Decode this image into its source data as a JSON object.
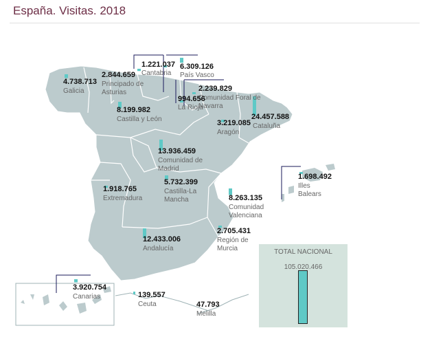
{
  "title": "España. Visitas. 2018",
  "colors": {
    "land": "#bccbcd",
    "border": "#ffffff",
    "bar": "#5fc9c6",
    "total_box": "#d4e3dd",
    "title": "#6d2e46"
  },
  "regions": [
    {
      "id": "galicia",
      "value": "4.738.713",
      "name": [
        "Galicia"
      ]
    },
    {
      "id": "asturias",
      "value": "2.844.659",
      "name": [
        "Principado de",
        "Asturias"
      ]
    },
    {
      "id": "cantabria",
      "value": "1.221.037",
      "name": [
        "Cantabria"
      ]
    },
    {
      "id": "pais-vasco",
      "value": "6.309.126",
      "name": [
        "País Vasco"
      ]
    },
    {
      "id": "navarra",
      "value": "2.239.829",
      "name": [
        "Comunidad Foral de",
        "Navarra"
      ]
    },
    {
      "id": "la-rioja",
      "value": "994.656",
      "name": [
        "La Rioja"
      ]
    },
    {
      "id": "cataluna",
      "value": "24.457.588",
      "name": [
        "Cataluña"
      ]
    },
    {
      "id": "aragon",
      "value": "3.219.085",
      "name": [
        "Aragón"
      ]
    },
    {
      "id": "castilla-leon",
      "value": "8.199.982",
      "name": [
        "Castilla y León"
      ]
    },
    {
      "id": "madrid",
      "value": "13.936.459",
      "name": [
        "Comunidad de",
        "Madrid"
      ]
    },
    {
      "id": "extremadura",
      "value": "1.918.765",
      "name": [
        "Extremadura"
      ]
    },
    {
      "id": "castilla-la-mancha",
      "value": "5.732.399",
      "name": [
        "Castilla-La",
        "Mancha"
      ]
    },
    {
      "id": "valenciana",
      "value": "8.263.135",
      "name": [
        "Comunidad",
        "Valenciana"
      ]
    },
    {
      "id": "baleares",
      "value": "1.698.492",
      "name": [
        "Illes",
        "Balears"
      ]
    },
    {
      "id": "murcia",
      "value": "2.705.431",
      "name": [
        "Región de",
        "Murcia"
      ]
    },
    {
      "id": "andalucia",
      "value": "12.433.006",
      "name": [
        "Andalucía"
      ]
    },
    {
      "id": "canarias",
      "value": "3.920.754",
      "name": [
        "Canarias"
      ]
    },
    {
      "id": "ceuta",
      "value": "139.557",
      "name": [
        "Ceuta"
      ]
    },
    {
      "id": "melilla",
      "value": "47.793",
      "name": [
        "Melilla"
      ]
    }
  ],
  "total": {
    "label": "TOTAL NACIONAL",
    "value": "105.020.466"
  }
}
